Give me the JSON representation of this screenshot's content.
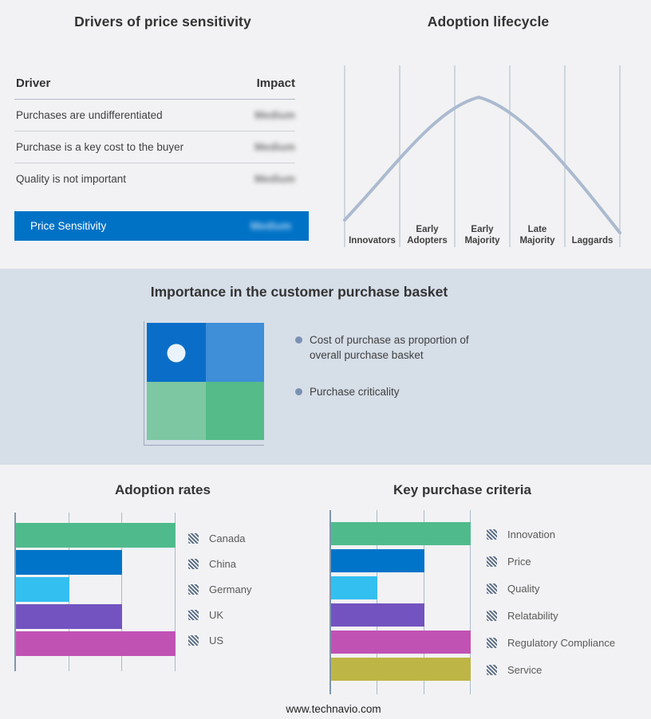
{
  "footer": "www.technavio.com",
  "colors": {
    "page_bg": "#f2f2f4",
    "band_bg": "#d6dee8",
    "accent_blue": "#0072c6",
    "axis_line": "#7e96ad",
    "gridline": "#a9bac9",
    "curve": "#abbacf",
    "legend_marker": "#5f7189",
    "bullet": "#7b91b3",
    "quadrant": [
      "#0a6ec8",
      "#3e8ed8",
      "#7dc7a2",
      "#55bb89"
    ]
  },
  "purchase_basket": {
    "title": "Importance in the customer purchase basket",
    "bullets": [
      "Cost of purchase as proportion of overall purchase basket",
      "Purchase criticality"
    ]
  },
  "chart_data": [
    {
      "type": "table",
      "title": "Drivers of price sensitivity",
      "columns": [
        "Driver",
        "Impact"
      ],
      "rows": [
        [
          "Purchases are undifferentiated",
          "Medium"
        ],
        [
          "Purchase is a key cost to the buyer",
          "Medium"
        ],
        [
          "Quality is not important",
          "Medium"
        ]
      ],
      "highlight_row": [
        "Price Sensitivity",
        "Medium"
      ],
      "note": "Impact values are blurred/redacted in the source image"
    },
    {
      "type": "line",
      "title": "Adoption lifecycle",
      "categories": [
        "Innovators",
        "Early Adopters",
        "Early Majority",
        "Late Majority",
        "Laggards"
      ],
      "shape": "bell curve rising from Innovators, peaking at Early Majority, falling to Laggards",
      "grid": true,
      "legend_position": "none"
    },
    {
      "type": "bar",
      "title": "Adoption rates",
      "orientation": "horizontal",
      "categories": [
        "Canada",
        "China",
        "Germany",
        "UK",
        "US"
      ],
      "values": [
        3,
        2,
        1,
        2,
        3
      ],
      "xlim": [
        0,
        3
      ],
      "colors": [
        "#4fbb8d",
        "#0074c9",
        "#33bff0",
        "#7253c0",
        "#c052b4"
      ],
      "grid": true,
      "legend_position": "right"
    },
    {
      "type": "bar",
      "title": "Key purchase criteria",
      "orientation": "horizontal",
      "categories": [
        "Innovation",
        "Price",
        "Quality",
        "Relatability",
        "Regulatory Compliance",
        "Service"
      ],
      "values": [
        3,
        2,
        1,
        2,
        3,
        3
      ],
      "xlim": [
        0,
        3
      ],
      "colors": [
        "#4fbb8d",
        "#0074c9",
        "#33bff0",
        "#7253c0",
        "#c052b4",
        "#bdb546"
      ],
      "grid": true,
      "legend_position": "right"
    }
  ]
}
